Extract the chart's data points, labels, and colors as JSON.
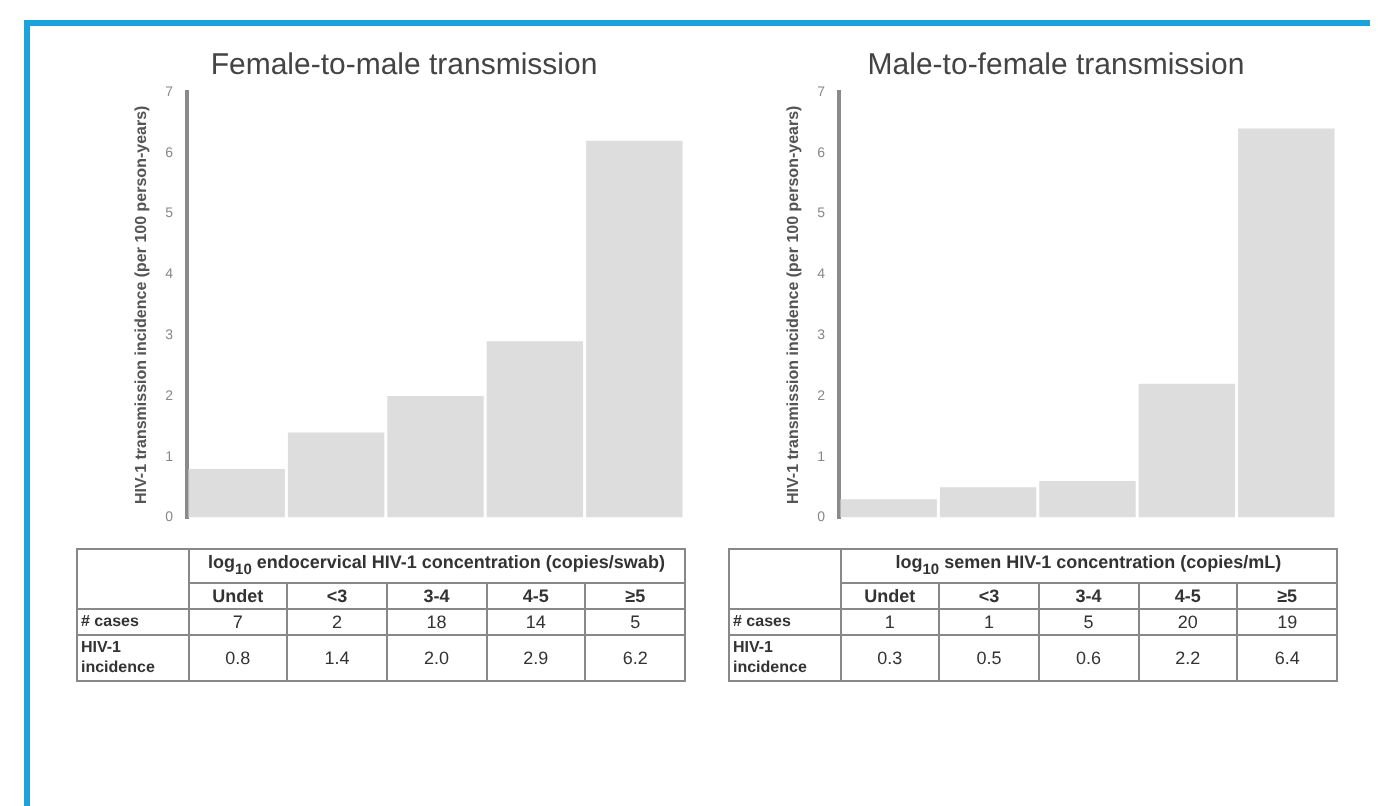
{
  "chart_data": [
    {
      "type": "bar",
      "title": "Female-to-male transmission",
      "ylabel": "HIV-1 transmission incidence (per 100 person-years)",
      "xlabel": "log$_{10}$ endocervical HIV-1 concentration (copies/swab)",
      "categories": [
        "Undet",
        "<3",
        "3-4",
        "4-5",
        "≥5"
      ],
      "values": [
        0.8,
        1.4,
        2.0,
        2.9,
        6.2
      ],
      "value_labels": [
        "0.8",
        "1.4",
        "2.0",
        "2.9",
        "6.2"
      ],
      "color": "#dddddd",
      "ylim": [
        0,
        7
      ],
      "yticks": [
        0,
        1,
        2,
        3,
        4,
        5,
        6,
        7
      ],
      "grid": false,
      "legend": false,
      "annotations": [
        "# cases",
        "7",
        "2",
        "18",
        "14",
        "5",
        "HIV-1 incidence"
      ]
    },
    {
      "type": "bar",
      "title": "Male-to-female transmission",
      "ylabel": "HIV-1 transmission incidence (per 100 person-years)",
      "xlabel": "log$_{10}$ semen HIV-1 concentration (copies/mL)",
      "categories": [
        "Undet",
        "<3",
        "3-4",
        "4-5",
        "≥5"
      ],
      "values": [
        0.3,
        0.5,
        0.6,
        2.2,
        6.4
      ],
      "value_labels": [
        "0.3",
        "0.5",
        "0.6",
        "2.2",
        "6.4"
      ],
      "color": "#dddddd",
      "ylim": [
        0,
        7
      ],
      "yticks": [
        0,
        1,
        2,
        3,
        4,
        5,
        6,
        7
      ],
      "grid": false,
      "legend": false,
      "annotations": [
        "# cases",
        "1",
        "1",
        "5",
        "20",
        "19",
        "HIV-1 incidence"
      ]
    }
  ]
}
